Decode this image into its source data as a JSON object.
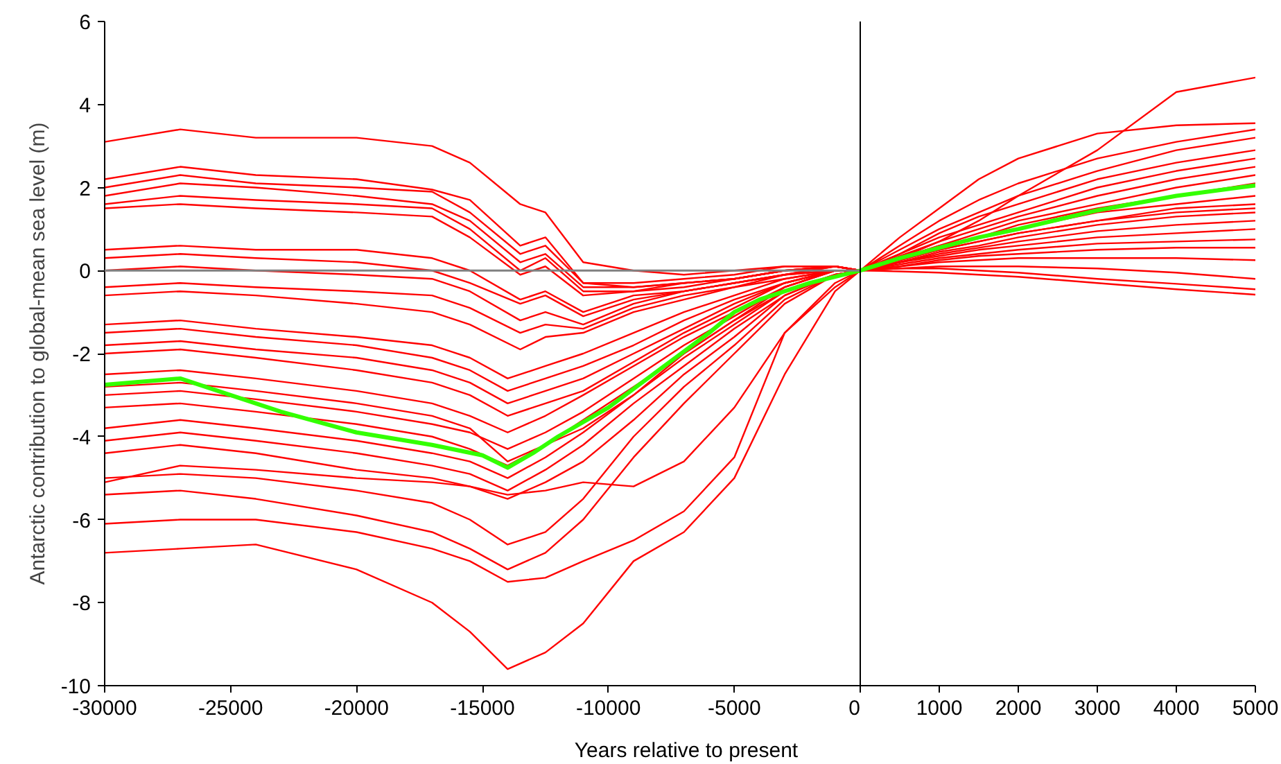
{
  "chart_data": [
    {
      "type": "line",
      "ylabel": "Antarctic contribution to global-mean sea level (m)",
      "xlabel": "Years relative to present",
      "xlim": [
        -30000,
        0
      ],
      "xticks": [
        -30000,
        -25000,
        -20000,
        -15000,
        -10000,
        -5000,
        0
      ],
      "ylim": [
        -10,
        6
      ],
      "yticks": [
        -10,
        -8,
        -6,
        -4,
        -2,
        0,
        2,
        4,
        6
      ],
      "grid": false,
      "marker": "none",
      "line_style": "solid",
      "ref_lines": [
        {
          "axis": "y",
          "value": 0,
          "color": "#808080"
        }
      ],
      "series": [
        {
          "color": "#ff0000",
          "x": [
            -30000,
            -27000,
            -24000,
            -20000,
            -17000,
            -15500,
            -13500,
            -12500,
            -11000,
            -9000,
            -7000,
            -5000,
            -3000,
            -1000,
            0
          ],
          "values": [
            3.1,
            3.4,
            3.2,
            3.2,
            3.0,
            2.6,
            1.6,
            1.4,
            0.2,
            0.0,
            -0.1,
            0.0,
            0.1,
            0.1,
            0
          ]
        },
        {
          "color": "#ff0000",
          "x": [
            -30000,
            -27000,
            -24000,
            -20000,
            -17000,
            -15500,
            -13500,
            -12500,
            -11000,
            -9000,
            -7000,
            -5000,
            -3000,
            -1000,
            0
          ],
          "values": [
            2.2,
            2.5,
            2.3,
            2.2,
            1.95,
            1.7,
            0.6,
            0.8,
            -0.3,
            -0.3,
            -0.2,
            -0.1,
            0.1,
            0.1,
            0
          ]
        },
        {
          "color": "#ff0000",
          "x": [
            -30000,
            -27000,
            -24000,
            -20000,
            -17000,
            -15500,
            -13500,
            -12500,
            -11000,
            -9000,
            -7000,
            -5000,
            -3000,
            -1000,
            0
          ],
          "values": [
            2.0,
            2.3,
            2.1,
            2.0,
            1.9,
            1.4,
            0.4,
            0.6,
            -0.3,
            -0.4,
            -0.3,
            -0.2,
            0.0,
            0.1,
            0
          ]
        },
        {
          "color": "#ff0000",
          "x": [
            -30000,
            -27000,
            -24000,
            -20000,
            -17000,
            -15500,
            -13500,
            -12500,
            -11000,
            -9000,
            -7000,
            -5000,
            -3000,
            -1000,
            0
          ],
          "values": [
            1.8,
            2.1,
            2.0,
            1.8,
            1.6,
            1.2,
            0.2,
            0.4,
            -0.4,
            -0.4,
            -0.3,
            -0.2,
            0.0,
            0.1,
            0
          ]
        },
        {
          "color": "#ff0000",
          "x": [
            -30000,
            -27000,
            -24000,
            -20000,
            -17000,
            -15500,
            -13500,
            -12500,
            -11000,
            -9000,
            -7000,
            -5000,
            -3000,
            -1000,
            0
          ],
          "values": [
            1.6,
            1.8,
            1.7,
            1.6,
            1.5,
            1.0,
            0.0,
            0.3,
            -0.5,
            -0.5,
            -0.3,
            -0.2,
            0.0,
            0.1,
            0
          ]
        },
        {
          "color": "#ff0000",
          "x": [
            -30000,
            -27000,
            -24000,
            -20000,
            -17000,
            -15500,
            -13500,
            -12500,
            -11000,
            -9000,
            -7000,
            -5000,
            -3000,
            -1000,
            0
          ],
          "values": [
            1.5,
            1.6,
            1.5,
            1.4,
            1.3,
            0.8,
            -0.1,
            0.1,
            -0.6,
            -0.5,
            -0.4,
            -0.2,
            0.0,
            0.1,
            0
          ]
        },
        {
          "color": "#ff0000",
          "x": [
            -30000,
            -27000,
            -24000,
            -20000,
            -17000,
            -15500,
            -13500,
            -12500,
            -11000,
            -9000,
            -7000,
            -5000,
            -3000,
            -1000,
            0
          ],
          "values": [
            0.5,
            0.6,
            0.5,
            0.5,
            0.3,
            0.0,
            -0.7,
            -0.5,
            -1.0,
            -0.6,
            -0.5,
            -0.3,
            -0.1,
            0.1,
            0
          ]
        },
        {
          "color": "#ff0000",
          "x": [
            -30000,
            -27000,
            -24000,
            -20000,
            -17000,
            -15500,
            -13500,
            -12500,
            -11000,
            -9000,
            -7000,
            -5000,
            -3000,
            -1000,
            0
          ],
          "values": [
            0.3,
            0.4,
            0.3,
            0.2,
            0.0,
            -0.3,
            -0.8,
            -0.6,
            -1.1,
            -0.7,
            -0.5,
            -0.3,
            -0.1,
            0.1,
            0
          ]
        },
        {
          "color": "#ff0000",
          "x": [
            -30000,
            -27000,
            -24000,
            -20000,
            -17000,
            -15500,
            -13500,
            -12500,
            -11000,
            -9000,
            -7000,
            -5000,
            -3000,
            -1000,
            0
          ],
          "values": [
            0.0,
            0.1,
            0.0,
            -0.1,
            -0.2,
            -0.5,
            -1.2,
            -1.0,
            -1.3,
            -0.8,
            -0.5,
            -0.3,
            -0.1,
            0.0,
            0
          ]
        },
        {
          "color": "#ff0000",
          "x": [
            -30000,
            -27000,
            -24000,
            -20000,
            -17000,
            -15500,
            -13500,
            -12500,
            -11000,
            -9000,
            -7000,
            -5000,
            -3000,
            -1000,
            0
          ],
          "values": [
            -0.4,
            -0.3,
            -0.4,
            -0.5,
            -0.6,
            -0.9,
            -1.5,
            -1.3,
            -1.4,
            -0.9,
            -0.6,
            -0.4,
            -0.1,
            0.0,
            0
          ]
        },
        {
          "color": "#ff0000",
          "x": [
            -30000,
            -27000,
            -24000,
            -20000,
            -17000,
            -15500,
            -13500,
            -12500,
            -11000,
            -9000,
            -7000,
            -5000,
            -3000,
            -1000,
            0
          ],
          "values": [
            -0.6,
            -0.5,
            -0.6,
            -0.8,
            -1.0,
            -1.3,
            -1.9,
            -1.6,
            -1.5,
            -1.0,
            -0.7,
            -0.4,
            -0.2,
            0.0,
            0
          ]
        },
        {
          "color": "#ff0000",
          "x": [
            -30000,
            -27000,
            -24000,
            -20000,
            -17000,
            -15500,
            -14000,
            -12500,
            -11000,
            -9000,
            -7000,
            -5000,
            -3000,
            -1000,
            0
          ],
          "values": [
            -1.3,
            -1.2,
            -1.4,
            -1.6,
            -1.8,
            -2.1,
            -2.6,
            -2.3,
            -2.0,
            -1.5,
            -1.0,
            -0.6,
            -0.2,
            0.0,
            0
          ]
        },
        {
          "color": "#ff0000",
          "x": [
            -30000,
            -27000,
            -24000,
            -20000,
            -17000,
            -15500,
            -14000,
            -12500,
            -11000,
            -9000,
            -7000,
            -5000,
            -3000,
            -1000,
            0
          ],
          "values": [
            -1.5,
            -1.4,
            -1.6,
            -1.8,
            -2.1,
            -2.4,
            -2.9,
            -2.6,
            -2.3,
            -1.8,
            -1.2,
            -0.7,
            -0.3,
            0.0,
            0
          ]
        },
        {
          "color": "#ff0000",
          "x": [
            -30000,
            -27000,
            -24000,
            -20000,
            -17000,
            -15500,
            -14000,
            -12500,
            -11000,
            -9000,
            -7000,
            -5000,
            -3000,
            -1000,
            0
          ],
          "values": [
            -1.8,
            -1.7,
            -1.9,
            -2.1,
            -2.4,
            -2.7,
            -3.2,
            -2.9,
            -2.6,
            -2.0,
            -1.4,
            -0.8,
            -0.3,
            0.0,
            0
          ]
        },
        {
          "color": "#ff0000",
          "x": [
            -30000,
            -27000,
            -24000,
            -20000,
            -17000,
            -15500,
            -14000,
            -12500,
            -11000,
            -9000,
            -7000,
            -5000,
            -3000,
            -1000,
            0
          ],
          "values": [
            -2.0,
            -1.9,
            -2.1,
            -2.4,
            -2.7,
            -3.0,
            -3.5,
            -3.2,
            -2.9,
            -2.2,
            -1.5,
            -0.9,
            -0.3,
            0.0,
            0
          ]
        },
        {
          "color": "#ff0000",
          "x": [
            -30000,
            -27000,
            -24000,
            -20000,
            -17000,
            -15500,
            -14000,
            -12500,
            -11000,
            -9000,
            -7000,
            -5000,
            -3000,
            -1000,
            0
          ],
          "values": [
            -2.5,
            -2.4,
            -2.6,
            -2.9,
            -3.2,
            -3.5,
            -3.9,
            -3.5,
            -3.0,
            -2.3,
            -1.6,
            -1.0,
            -0.4,
            0.0,
            0
          ]
        },
        {
          "color": "#ff0000",
          "x": [
            -30000,
            -27000,
            -24000,
            -20000,
            -17000,
            -15500,
            -14000,
            -12500,
            -11000,
            -9000,
            -7000,
            -5000,
            -3000,
            -1000,
            0
          ],
          "values": [
            -2.8,
            -2.7,
            -2.9,
            -3.2,
            -3.5,
            -3.8,
            -4.6,
            -4.2,
            -3.8,
            -3.0,
            -2.0,
            -1.2,
            -0.4,
            0.0,
            0
          ]
        },
        {
          "color": "#ff0000",
          "x": [
            -30000,
            -27000,
            -24000,
            -20000,
            -17000,
            -15500,
            -14000,
            -12500,
            -11000,
            -9000,
            -7000,
            -5000,
            -3000,
            -1000,
            0
          ],
          "values": [
            -3.0,
            -2.9,
            -3.1,
            -3.4,
            -3.7,
            -3.9,
            -4.3,
            -3.9,
            -3.4,
            -2.6,
            -1.8,
            -1.1,
            -0.4,
            0.0,
            0
          ]
        },
        {
          "color": "#ff0000",
          "x": [
            -30000,
            -27000,
            -24000,
            -20000,
            -17000,
            -15500,
            -14000,
            -12500,
            -11000,
            -9000,
            -7000,
            -5000,
            -3000,
            -1000,
            0
          ],
          "values": [
            -3.3,
            -3.2,
            -3.4,
            -3.7,
            -4.0,
            -4.3,
            -4.7,
            -4.2,
            -3.6,
            -2.8,
            -2.0,
            -1.2,
            -0.5,
            -0.1,
            0
          ]
        },
        {
          "color": "#ff0000",
          "x": [
            -30000,
            -27000,
            -24000,
            -20000,
            -17000,
            -15500,
            -14000,
            -12500,
            -11000,
            -9000,
            -7000,
            -5000,
            -3000,
            -1000,
            0
          ],
          "values": [
            -3.8,
            -3.6,
            -3.8,
            -4.1,
            -4.4,
            -4.6,
            -5.0,
            -4.5,
            -3.9,
            -3.0,
            -2.1,
            -1.3,
            -0.5,
            -0.1,
            0
          ]
        },
        {
          "color": "#ff0000",
          "x": [
            -30000,
            -27000,
            -24000,
            -20000,
            -17000,
            -15500,
            -14000,
            -12500,
            -11000,
            -9000,
            -7000,
            -5000,
            -3000,
            -1000,
            0
          ],
          "values": [
            -4.1,
            -3.9,
            -4.1,
            -4.4,
            -4.7,
            -4.9,
            -5.3,
            -4.8,
            -4.2,
            -3.2,
            -2.3,
            -1.4,
            -0.6,
            -0.1,
            0
          ]
        },
        {
          "color": "#ff0000",
          "x": [
            -30000,
            -27000,
            -24000,
            -20000,
            -17000,
            -15500,
            -14000,
            -12500,
            -11000,
            -9000,
            -7000,
            -5000,
            -3000,
            -1000,
            0
          ],
          "values": [
            -5.1,
            -4.7,
            -4.8,
            -5.0,
            -5.1,
            -5.2,
            -5.5,
            -5.1,
            -4.6,
            -3.6,
            -2.5,
            -1.6,
            -0.6,
            -0.1,
            0
          ]
        },
        {
          "color": "#ff0000",
          "x": [
            -30000,
            -27000,
            -24000,
            -20000,
            -17000,
            -15500,
            -14000,
            -12500,
            -11000,
            -9000,
            -7000,
            -5000,
            -3000,
            -1000,
            0
          ],
          "values": [
            -4.4,
            -4.2,
            -4.4,
            -4.8,
            -5.0,
            -5.2,
            -5.4,
            -5.3,
            -5.1,
            -5.2,
            -4.6,
            -3.3,
            -1.5,
            -0.4,
            0
          ]
        },
        {
          "color": "#ff0000",
          "x": [
            -30000,
            -27000,
            -24000,
            -20000,
            -17000,
            -15500,
            -14000,
            -12500,
            -11000,
            -9000,
            -7000,
            -5000,
            -3000,
            -1000,
            0
          ],
          "values": [
            -5.0,
            -4.9,
            -5.0,
            -5.3,
            -5.6,
            -6.0,
            -6.6,
            -6.3,
            -5.5,
            -4.0,
            -2.8,
            -1.8,
            -0.7,
            -0.1,
            0
          ]
        },
        {
          "color": "#ff0000",
          "x": [
            -30000,
            -27000,
            -24000,
            -20000,
            -17000,
            -15500,
            -14000,
            -12500,
            -11000,
            -9000,
            -7000,
            -5000,
            -3000,
            -1000,
            0
          ],
          "values": [
            -5.4,
            -5.3,
            -5.5,
            -5.9,
            -6.3,
            -6.7,
            -7.2,
            -6.8,
            -6.0,
            -4.5,
            -3.2,
            -2.0,
            -0.8,
            -0.1,
            0
          ]
        },
        {
          "color": "#ff0000",
          "x": [
            -30000,
            -27000,
            -24000,
            -20000,
            -17000,
            -15500,
            -14000,
            -12500,
            -11000,
            -9000,
            -7000,
            -5000,
            -3000,
            -1000,
            0
          ],
          "values": [
            -6.1,
            -6.0,
            -6.0,
            -6.3,
            -6.7,
            -7.0,
            -7.5,
            -7.4,
            -7.0,
            -6.5,
            -5.8,
            -4.5,
            -1.5,
            -0.3,
            0
          ]
        },
        {
          "color": "#ff0000",
          "x": [
            -30000,
            -27000,
            -24000,
            -20000,
            -17000,
            -15500,
            -14000,
            -12500,
            -11000,
            -9000,
            -7000,
            -5000,
            -3000,
            -1000,
            0
          ],
          "values": [
            -6.8,
            -6.7,
            -6.6,
            -7.2,
            -8.0,
            -8.7,
            -9.6,
            -9.2,
            -8.5,
            -7.0,
            -6.3,
            -5.0,
            -2.5,
            -0.5,
            0
          ]
        },
        {
          "color": "#33ff00",
          "x": [
            -30000,
            -27000,
            -25000,
            -23000,
            -20000,
            -17000,
            -15000,
            -14000,
            -13000,
            -12000,
            -10000,
            -8000,
            -6000,
            -5000,
            -4000,
            -2000,
            0
          ],
          "values": [
            -2.75,
            -2.6,
            -3.0,
            -3.4,
            -3.9,
            -4.2,
            -4.45,
            -4.75,
            -4.4,
            -4.0,
            -3.3,
            -2.4,
            -1.5,
            -1.0,
            -0.7,
            -0.3,
            0
          ]
        }
      ]
    },
    {
      "type": "line",
      "xlim": [
        0,
        5000
      ],
      "xticks": [
        {
          "value": 0,
          "label": null
        },
        1000,
        2000,
        3000,
        4000,
        5000
      ],
      "ylim": [
        -10,
        6
      ],
      "tick_labels": "x",
      "grid": false,
      "marker": "none",
      "line_style": "solid",
      "series": [
        {
          "color": "#ff0000",
          "x": [
            0,
            500,
            1000,
            1500,
            2000,
            3000,
            4000,
            5000
          ],
          "values": [
            0,
            0.3,
            0.7,
            1.2,
            1.8,
            2.9,
            4.3,
            4.65
          ]
        },
        {
          "color": "#ff0000",
          "x": [
            0,
            500,
            1000,
            1500,
            2000,
            3000,
            4000,
            5000
          ],
          "values": [
            0,
            0.8,
            1.5,
            2.2,
            2.7,
            3.3,
            3.5,
            3.55
          ]
        },
        {
          "color": "#ff0000",
          "x": [
            0,
            500,
            1000,
            1500,
            2000,
            3000,
            4000,
            5000
          ],
          "values": [
            0,
            0.6,
            1.2,
            1.7,
            2.1,
            2.7,
            3.1,
            3.4
          ]
        },
        {
          "color": "#ff0000",
          "x": [
            0,
            500,
            1000,
            1500,
            2000,
            3000,
            4000,
            5000
          ],
          "values": [
            0,
            0.5,
            1.0,
            1.4,
            1.8,
            2.4,
            2.9,
            3.2
          ]
        },
        {
          "color": "#ff0000",
          "x": [
            0,
            500,
            1000,
            1500,
            2000,
            3000,
            4000,
            5000
          ],
          "values": [
            0,
            0.4,
            0.9,
            1.3,
            1.6,
            2.2,
            2.6,
            2.9
          ]
        },
        {
          "color": "#ff0000",
          "x": [
            0,
            500,
            1000,
            1500,
            2000,
            3000,
            4000,
            5000
          ],
          "values": [
            0,
            0.4,
            0.8,
            1.1,
            1.4,
            2.0,
            2.4,
            2.7
          ]
        },
        {
          "color": "#ff0000",
          "x": [
            0,
            500,
            1000,
            1500,
            2000,
            3000,
            4000,
            5000
          ],
          "values": [
            0,
            0.35,
            0.7,
            1.0,
            1.3,
            1.8,
            2.2,
            2.5
          ]
        },
        {
          "color": "#ff0000",
          "x": [
            0,
            500,
            1000,
            1500,
            2000,
            3000,
            4000,
            5000
          ],
          "values": [
            0,
            0.3,
            0.6,
            0.9,
            1.2,
            1.6,
            2.0,
            2.3
          ]
        },
        {
          "color": "#ff0000",
          "x": [
            0,
            500,
            1000,
            1500,
            2000,
            3000,
            4000,
            5000
          ],
          "values": [
            0,
            0.3,
            0.6,
            0.8,
            1.1,
            1.5,
            1.8,
            2.1
          ]
        },
        {
          "color": "#ff0000",
          "x": [
            0,
            500,
            1000,
            1500,
            2000,
            3000,
            4000,
            5000
          ],
          "values": [
            0,
            0.3,
            0.5,
            0.8,
            1.0,
            1.4,
            1.6,
            1.8
          ]
        },
        {
          "color": "#ff0000",
          "x": [
            0,
            500,
            1000,
            1500,
            2000,
            3000,
            4000,
            5000
          ],
          "values": [
            0,
            0.25,
            0.5,
            0.7,
            0.9,
            1.2,
            1.5,
            1.6
          ]
        },
        {
          "color": "#ff0000",
          "x": [
            0,
            500,
            1000,
            1500,
            2000,
            3000,
            4000,
            5000
          ],
          "values": [
            0,
            0.25,
            0.5,
            0.7,
            0.9,
            1.2,
            1.4,
            1.5
          ]
        },
        {
          "color": "#ff0000",
          "x": [
            0,
            500,
            1000,
            1500,
            2000,
            3000,
            4000,
            5000
          ],
          "values": [
            0,
            0.2,
            0.45,
            0.6,
            0.8,
            1.1,
            1.3,
            1.4
          ]
        },
        {
          "color": "#ff0000",
          "x": [
            0,
            500,
            1000,
            1500,
            2000,
            3000,
            4000,
            5000
          ],
          "values": [
            0,
            0.2,
            0.4,
            0.55,
            0.7,
            0.95,
            1.1,
            1.2
          ]
        },
        {
          "color": "#ff0000",
          "x": [
            0,
            500,
            1000,
            1500,
            2000,
            3000,
            4000,
            5000
          ],
          "values": [
            0,
            0.2,
            0.35,
            0.5,
            0.6,
            0.8,
            0.9,
            1.0
          ]
        },
        {
          "color": "#ff0000",
          "x": [
            0,
            500,
            1000,
            1500,
            2000,
            3000,
            4000,
            5000
          ],
          "values": [
            0,
            0.15,
            0.3,
            0.4,
            0.5,
            0.65,
            0.7,
            0.75
          ]
        },
        {
          "color": "#ff0000",
          "x": [
            0,
            500,
            1000,
            1500,
            2000,
            3000,
            4000,
            5000
          ],
          "values": [
            0,
            0.1,
            0.25,
            0.35,
            0.4,
            0.5,
            0.55,
            0.55
          ]
        },
        {
          "color": "#ff0000",
          "x": [
            0,
            500,
            1000,
            1500,
            2000,
            3000,
            4000,
            5000
          ],
          "values": [
            0,
            0.1,
            0.2,
            0.25,
            0.3,
            0.3,
            0.3,
            0.25
          ]
        },
        {
          "color": "#ff0000",
          "x": [
            0,
            500,
            1000,
            1500,
            2000,
            3000,
            4000,
            5000
          ],
          "values": [
            0,
            0.05,
            0.1,
            0.1,
            0.1,
            0.05,
            -0.05,
            -0.2
          ]
        },
        {
          "color": "#ff0000",
          "x": [
            0,
            500,
            1000,
            1500,
            2000,
            3000,
            4000,
            5000
          ],
          "values": [
            0,
            0.05,
            0.05,
            0.0,
            -0.05,
            -0.2,
            -0.32,
            -0.45
          ]
        },
        {
          "color": "#ff0000",
          "x": [
            0,
            500,
            1000,
            1500,
            2000,
            3000,
            4000,
            5000
          ],
          "values": [
            0,
            -0.02,
            -0.05,
            -0.1,
            -0.15,
            -0.3,
            -0.45,
            -0.58
          ]
        },
        {
          "color": "#33ff00",
          "x": [
            0,
            500,
            1000,
            1500,
            2000,
            3000,
            4000,
            5000
          ],
          "values": [
            0,
            0.3,
            0.55,
            0.8,
            1.0,
            1.45,
            1.8,
            2.05
          ]
        }
      ]
    }
  ]
}
